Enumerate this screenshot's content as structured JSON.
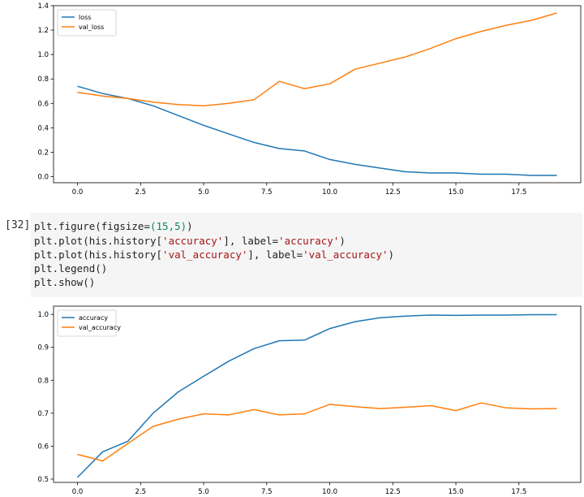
{
  "cell": {
    "prompt": "[32]",
    "lines": [
      [
        {
          "t": "plt.figure(figsize=",
          "c": ""
        },
        {
          "t": "(15,5)",
          "c": "tok-num"
        },
        {
          "t": ")",
          "c": ""
        }
      ],
      [
        {
          "t": "plt.plot(his.history[",
          "c": ""
        },
        {
          "t": "'accuracy'",
          "c": "tok-str"
        },
        {
          "t": "], label=",
          "c": ""
        },
        {
          "t": "'accuracy'",
          "c": "tok-str"
        },
        {
          "t": ")",
          "c": ""
        }
      ],
      [
        {
          "t": "plt.plot(his.history[",
          "c": ""
        },
        {
          "t": "'val_accuracy'",
          "c": "tok-str"
        },
        {
          "t": "], label=",
          "c": ""
        },
        {
          "t": "'val_accuracy'",
          "c": "tok-str"
        },
        {
          "t": ")",
          "c": ""
        }
      ],
      [
        {
          "t": "plt.legend()",
          "c": ""
        }
      ],
      [
        {
          "t": "plt.show()",
          "c": ""
        }
      ]
    ]
  },
  "chart_data": [
    {
      "type": "line",
      "title": "",
      "xlabel": "",
      "ylabel": "",
      "xlim": [
        -0.95,
        19.95
      ],
      "ylim": [
        -0.05,
        1.4
      ],
      "xticks": [
        "0.0",
        "2.5",
        "5.0",
        "7.5",
        "10.0",
        "12.5",
        "15.0",
        "17.5"
      ],
      "yticks": [
        "0.0",
        "0.2",
        "0.4",
        "0.6",
        "0.8",
        "1.0",
        "1.2",
        "1.4"
      ],
      "legend": "top-left",
      "grid": false,
      "x": [
        0,
        1,
        2,
        3,
        4,
        5,
        6,
        7,
        8,
        9,
        10,
        11,
        12,
        13,
        14,
        15,
        16,
        17,
        18,
        19
      ],
      "series": [
        {
          "name": "loss",
          "color": "#1f77b4",
          "values": [
            0.74,
            0.68,
            0.64,
            0.58,
            0.5,
            0.42,
            0.35,
            0.28,
            0.23,
            0.21,
            0.14,
            0.1,
            0.07,
            0.04,
            0.03,
            0.03,
            0.02,
            0.02,
            0.01,
            0.01
          ]
        },
        {
          "name": "val_loss",
          "color": "#ff7f0e",
          "values": [
            0.69,
            0.66,
            0.64,
            0.61,
            0.59,
            0.58,
            0.6,
            0.63,
            0.78,
            0.72,
            0.76,
            0.88,
            0.93,
            0.98,
            1.05,
            1.13,
            1.19,
            1.24,
            1.28,
            1.34
          ]
        }
      ]
    },
    {
      "type": "line",
      "title": "",
      "xlabel": "",
      "ylabel": "",
      "xlim": [
        -0.95,
        19.95
      ],
      "ylim": [
        0.49,
        1.025
      ],
      "xticks": [
        "0.0",
        "2.5",
        "5.0",
        "7.5",
        "10.0",
        "12.5",
        "15.0",
        "17.5"
      ],
      "yticks": [
        "0.5",
        "0.6",
        "0.7",
        "0.8",
        "0.9",
        "1.0"
      ],
      "legend": "top-left",
      "grid": false,
      "x": [
        0,
        1,
        2,
        3,
        4,
        5,
        6,
        7,
        8,
        9,
        10,
        11,
        12,
        13,
        14,
        15,
        16,
        17,
        18,
        19
      ],
      "series": [
        {
          "name": "accuracy",
          "color": "#1f77b4",
          "values": [
            0.505,
            0.583,
            0.615,
            0.7,
            0.765,
            0.812,
            0.858,
            0.896,
            0.92,
            0.922,
            0.957,
            0.978,
            0.99,
            0.995,
            0.998,
            0.997,
            0.998,
            0.998,
            0.999,
            0.999
          ]
        },
        {
          "name": "val_accuracy",
          "color": "#ff7f0e",
          "values": [
            0.575,
            0.555,
            0.608,
            0.66,
            0.682,
            0.698,
            0.695,
            0.711,
            0.695,
            0.698,
            0.727,
            0.72,
            0.714,
            0.718,
            0.723,
            0.708,
            0.731,
            0.716,
            0.713,
            0.714
          ]
        }
      ]
    }
  ]
}
